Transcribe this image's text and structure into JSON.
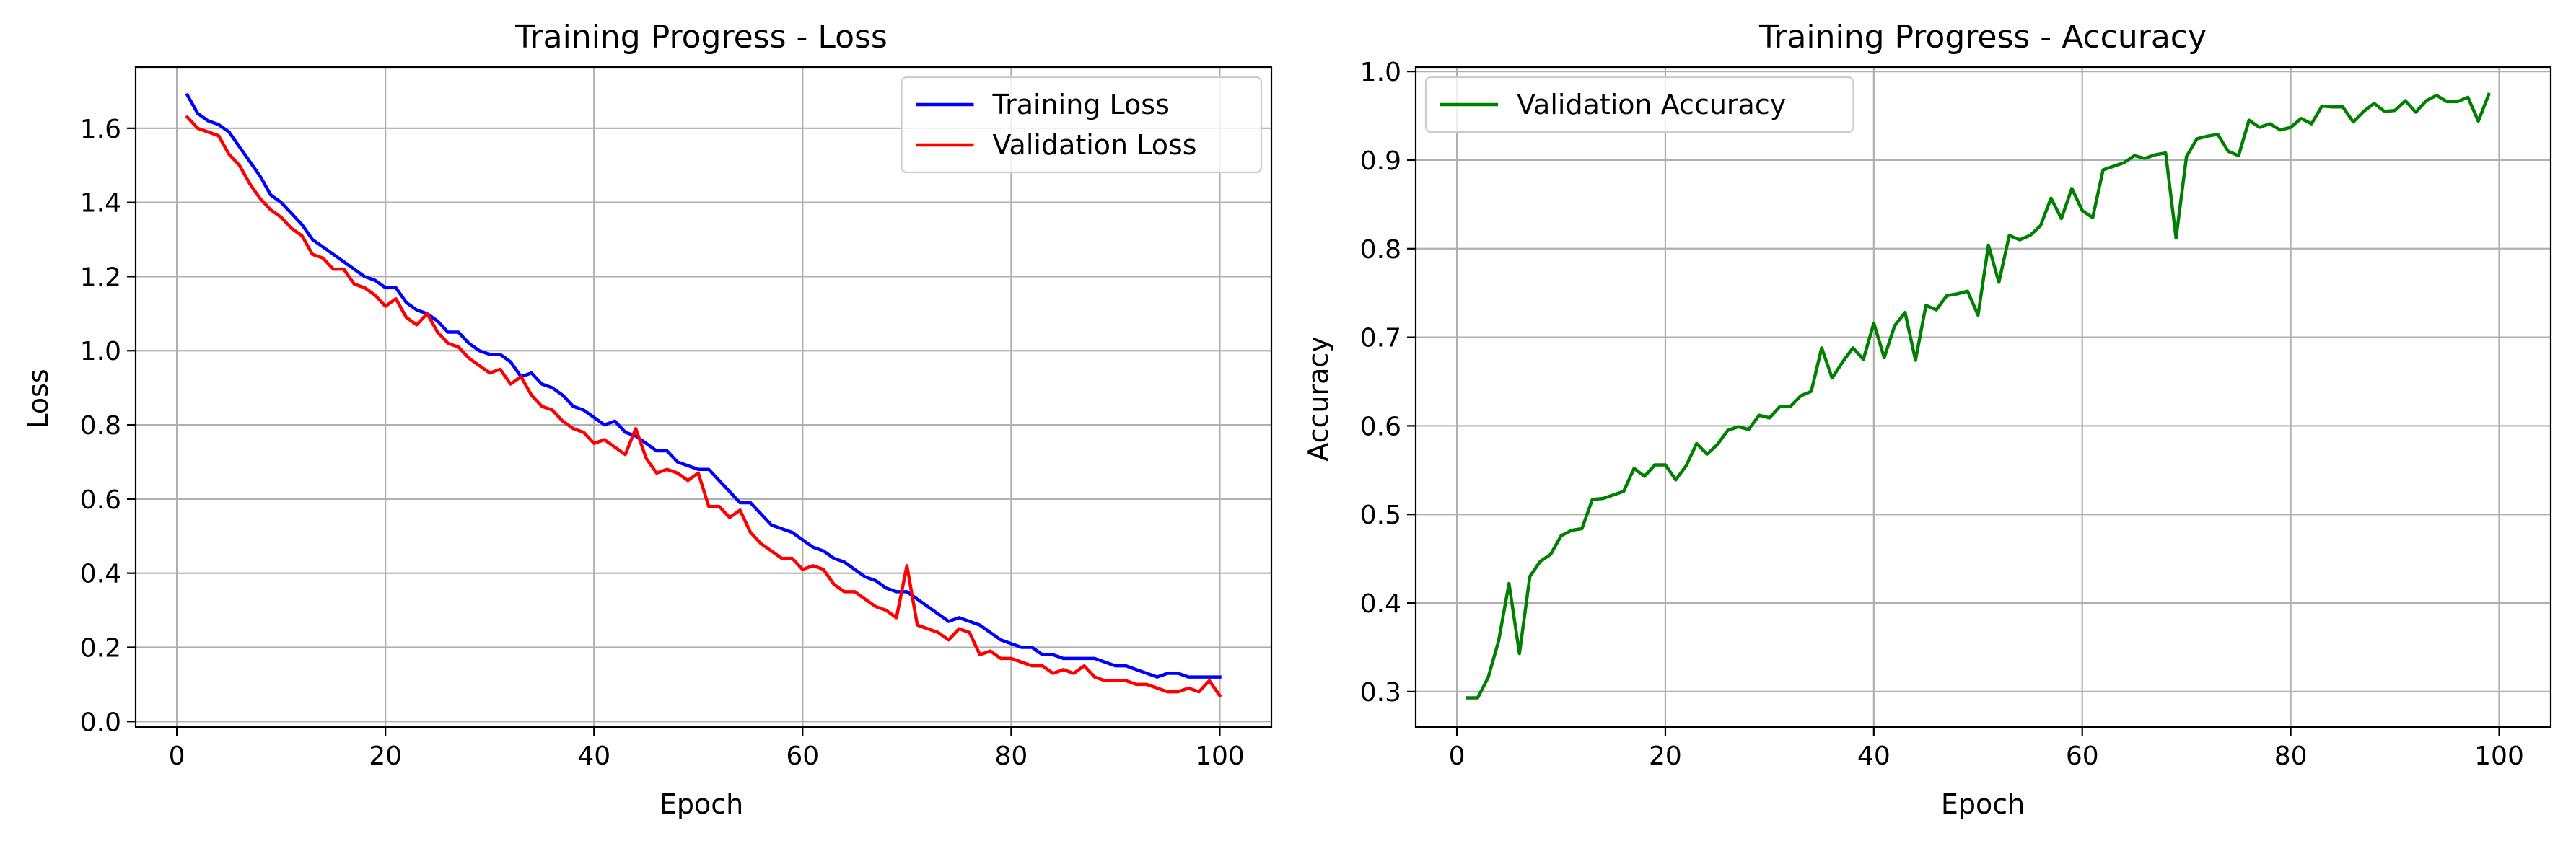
{
  "chart_data": [
    {
      "type": "line",
      "title": "Training Progress - Loss",
      "xlabel": "Epoch",
      "ylabel": "Loss",
      "xlim": [
        -3.95,
        104.95
      ],
      "ylim": [
        -0.015,
        1.765
      ],
      "xticks": [
        0,
        20,
        40,
        60,
        80,
        100
      ],
      "xtick_labels": [
        "0",
        "20",
        "40",
        "60",
        "80",
        "100"
      ],
      "yticks": [
        0.0,
        0.2,
        0.4,
        0.6,
        0.8,
        1.0,
        1.2,
        1.4,
        1.6
      ],
      "ytick_labels": [
        "0.0",
        "0.2",
        "0.4",
        "0.6",
        "0.8",
        "1.0",
        "1.2",
        "1.4",
        "1.6"
      ],
      "grid": true,
      "legend_position": "top-right",
      "series": [
        {
          "name": "Training Loss",
          "color": "#0000ff",
          "x_start": 1,
          "values": [
            1.69,
            1.64,
            1.62,
            1.61,
            1.59,
            1.55,
            1.51,
            1.47,
            1.42,
            1.4,
            1.37,
            1.34,
            1.3,
            1.28,
            1.26,
            1.24,
            1.22,
            1.2,
            1.19,
            1.17,
            1.17,
            1.13,
            1.11,
            1.1,
            1.08,
            1.05,
            1.05,
            1.02,
            1.0,
            0.99,
            0.99,
            0.97,
            0.93,
            0.94,
            0.91,
            0.9,
            0.88,
            0.85,
            0.84,
            0.82,
            0.8,
            0.81,
            0.78,
            0.77,
            0.75,
            0.73,
            0.73,
            0.7,
            0.69,
            0.68,
            0.68,
            0.65,
            0.62,
            0.59,
            0.59,
            0.56,
            0.53,
            0.52,
            0.51,
            0.49,
            0.47,
            0.46,
            0.44,
            0.43,
            0.41,
            0.39,
            0.38,
            0.36,
            0.35,
            0.35,
            0.33,
            0.31,
            0.29,
            0.27,
            0.28,
            0.27,
            0.26,
            0.24,
            0.22,
            0.21,
            0.2,
            0.2,
            0.18,
            0.18,
            0.17,
            0.17,
            0.17,
            0.17,
            0.16,
            0.15,
            0.15,
            0.14,
            0.13,
            0.12,
            0.13,
            0.13,
            0.12,
            0.12,
            0.12,
            0.12
          ]
        },
        {
          "name": "Validation Loss",
          "color": "#ff0000",
          "x_start": 1,
          "values": [
            1.63,
            1.6,
            1.59,
            1.58,
            1.53,
            1.5,
            1.45,
            1.41,
            1.38,
            1.36,
            1.33,
            1.31,
            1.26,
            1.25,
            1.22,
            1.22,
            1.18,
            1.17,
            1.15,
            1.12,
            1.14,
            1.09,
            1.07,
            1.1,
            1.05,
            1.02,
            1.01,
            0.98,
            0.96,
            0.94,
            0.95,
            0.91,
            0.93,
            0.88,
            0.85,
            0.84,
            0.81,
            0.79,
            0.78,
            0.75,
            0.76,
            0.74,
            0.72,
            0.79,
            0.71,
            0.67,
            0.68,
            0.67,
            0.65,
            0.67,
            0.58,
            0.58,
            0.55,
            0.57,
            0.51,
            0.48,
            0.46,
            0.44,
            0.44,
            0.41,
            0.42,
            0.41,
            0.37,
            0.35,
            0.35,
            0.33,
            0.31,
            0.3,
            0.28,
            0.42,
            0.26,
            0.25,
            0.24,
            0.22,
            0.25,
            0.24,
            0.18,
            0.19,
            0.17,
            0.17,
            0.16,
            0.15,
            0.15,
            0.13,
            0.14,
            0.13,
            0.15,
            0.12,
            0.11,
            0.11,
            0.11,
            0.1,
            0.1,
            0.09,
            0.08,
            0.08,
            0.09,
            0.08,
            0.11,
            0.07
          ]
        }
      ]
    },
    {
      "type": "line",
      "title": "Training Progress - Accuracy",
      "xlabel": "Epoch",
      "ylabel": "Accuracy",
      "xlim": [
        -3.95,
        104.95
      ],
      "ylim": [
        0.26,
        1.005
      ],
      "xticks": [
        0,
        20,
        40,
        60,
        80,
        100
      ],
      "xtick_labels": [
        "0",
        "20",
        "40",
        "60",
        "80",
        "100"
      ],
      "yticks": [
        0.3,
        0.4,
        0.5,
        0.6,
        0.7,
        0.8,
        0.9,
        1.0
      ],
      "ytick_labels": [
        "0.3",
        "0.4",
        "0.5",
        "0.6",
        "0.7",
        "0.8",
        "0.9",
        "1.0"
      ],
      "grid": true,
      "legend_position": "top-left",
      "series": [
        {
          "name": "Validation Accuracy",
          "color": "#008000",
          "x_start": 1,
          "values": [
            0.293,
            0.293,
            0.316,
            0.357,
            0.422,
            0.343,
            0.43,
            0.447,
            0.455,
            0.476,
            0.482,
            0.484,
            0.517,
            0.518,
            0.522,
            0.526,
            0.552,
            0.543,
            0.556,
            0.556,
            0.539,
            0.555,
            0.58,
            0.568,
            0.579,
            0.595,
            0.599,
            0.596,
            0.612,
            0.609,
            0.622,
            0.622,
            0.634,
            0.639,
            0.688,
            0.654,
            0.672,
            0.688,
            0.675,
            0.716,
            0.677,
            0.713,
            0.728,
            0.674,
            0.736,
            0.731,
            0.747,
            0.749,
            0.752,
            0.725,
            0.804,
            0.762,
            0.815,
            0.81,
            0.815,
            0.826,
            0.857,
            0.834,
            0.868,
            0.843,
            0.835,
            0.889,
            0.893,
            0.897,
            0.905,
            0.902,
            0.906,
            0.908,
            0.812,
            0.904,
            0.924,
            0.927,
            0.929,
            0.91,
            0.905,
            0.945,
            0.937,
            0.941,
            0.934,
            0.937,
            0.947,
            0.941,
            0.961,
            0.96,
            0.96,
            0.943,
            0.955,
            0.964,
            0.955,
            0.956,
            0.967,
            0.954,
            0.967,
            0.973,
            0.966,
            0.966,
            0.971,
            0.944,
            0.974
          ]
        }
      ]
    }
  ]
}
